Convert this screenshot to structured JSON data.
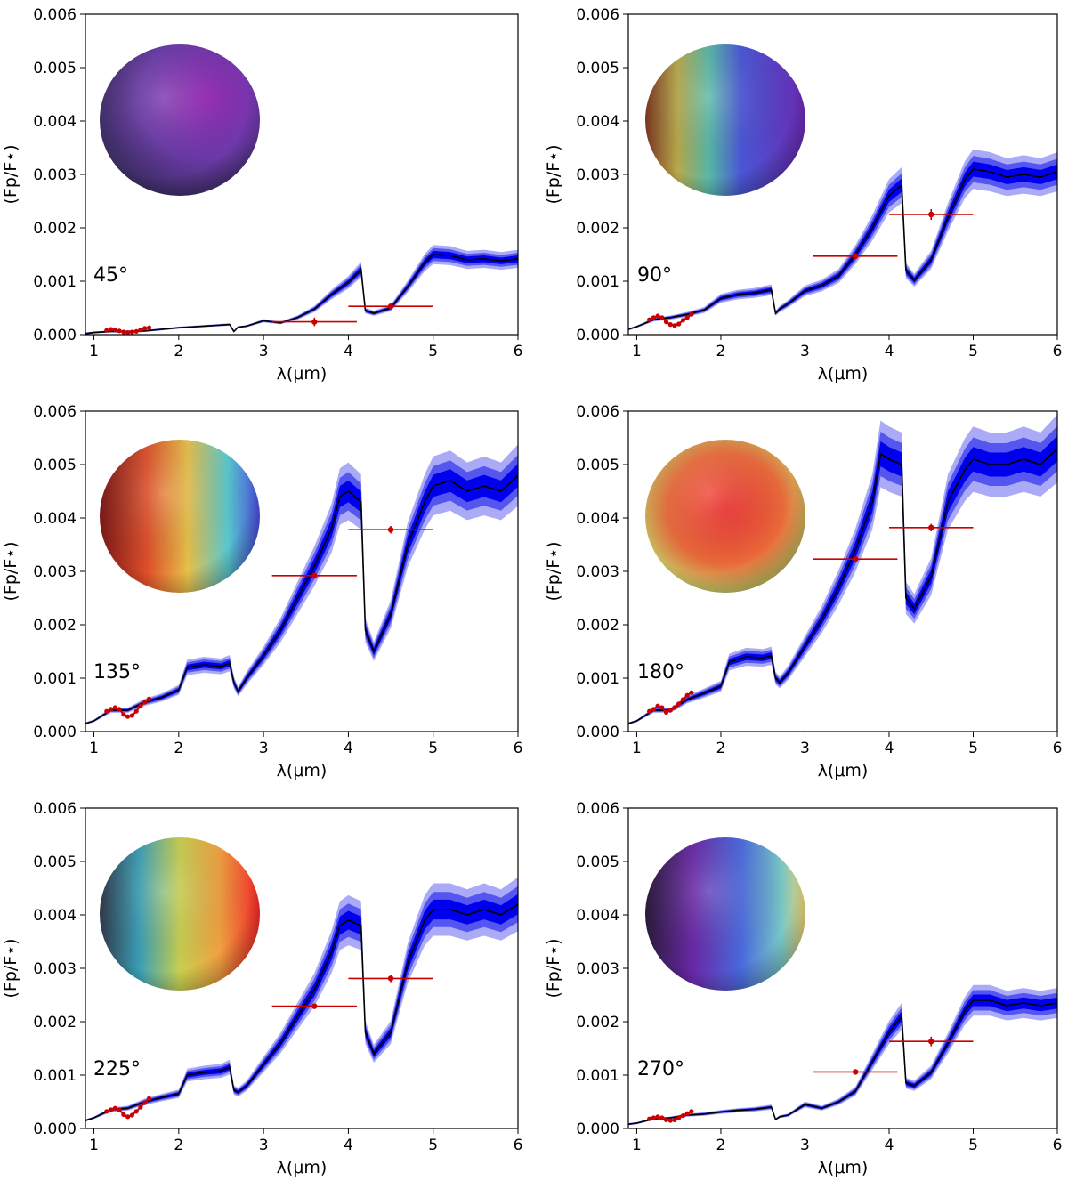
{
  "chart_data": [
    {
      "type": "line",
      "phase_label": "45°",
      "xlabel": "λ(μm)",
      "ylabel": "(Fp/F⋆)",
      "xlim": [
        0.9,
        6
      ],
      "ylim": [
        0,
        0.006
      ],
      "xticks": [
        "1",
        "2",
        "3",
        "4",
        "5",
        "6"
      ],
      "yticks": [
        "0.000",
        "0.001",
        "0.002",
        "0.003",
        "0.004",
        "0.005",
        "0.006"
      ],
      "model_spectrum": {
        "x": [
          0.9,
          1.0,
          1.2,
          1.4,
          1.6,
          1.8,
          2.0,
          2.2,
          2.4,
          2.6,
          2.65,
          2.7,
          2.8,
          3.0,
          3.2,
          3.4,
          3.6,
          3.8,
          4.0,
          4.15,
          4.2,
          4.3,
          4.5,
          4.7,
          4.9,
          5.0,
          5.2,
          5.4,
          5.6,
          5.8,
          6.0
        ],
        "y": [
          2e-05,
          4e-05,
          6e-05,
          6e-05,
          7e-05,
          0.0001,
          0.00013,
          0.00015,
          0.00017,
          0.00019,
          6e-05,
          0.00014,
          0.00016,
          0.00026,
          0.00022,
          0.00032,
          0.00048,
          0.00075,
          0.00098,
          0.00122,
          0.00045,
          0.0004,
          0.0005,
          0.0009,
          0.00135,
          0.0015,
          0.00148,
          0.0014,
          0.00142,
          0.00138,
          0.00142
        ]
      },
      "hst_points": {
        "x": [
          1.15,
          1.2,
          1.25,
          1.3,
          1.35,
          1.4,
          1.45,
          1.5,
          1.55,
          1.6,
          1.65
        ],
        "y": [
          8e-05,
          0.0001,
          9e-05,
          7e-05,
          5e-05,
          4e-05,
          5e-05,
          6e-05,
          9e-05,
          0.00012,
          0.00013
        ]
      },
      "spitzer_points": [
        {
          "x": 3.6,
          "y": 0.00024,
          "xerr": 0.5,
          "yerr": 8e-05
        },
        {
          "x": 4.5,
          "y": 0.00053,
          "xerr": 0.5,
          "yerr": 6e-05
        }
      ]
    },
    {
      "type": "line",
      "phase_label": "90°",
      "xlabel": "λ(μm)",
      "ylabel": "(Fp/F⋆)",
      "xlim": [
        0.9,
        6
      ],
      "ylim": [
        0,
        0.006
      ],
      "xticks": [
        "1",
        "2",
        "3",
        "4",
        "5",
        "6"
      ],
      "yticks": [
        "0.000",
        "0.001",
        "0.002",
        "0.003",
        "0.004",
        "0.005",
        "0.006"
      ],
      "model_spectrum": {
        "x": [
          0.9,
          1.0,
          1.2,
          1.4,
          1.6,
          1.8,
          2.0,
          2.2,
          2.4,
          2.6,
          2.65,
          2.7,
          2.8,
          3.0,
          3.2,
          3.4,
          3.6,
          3.8,
          4.0,
          4.15,
          4.2,
          4.3,
          4.5,
          4.7,
          4.9,
          5.0,
          5.2,
          5.4,
          5.6,
          5.8,
          6.0
        ],
        "y": [
          0.0001,
          0.00015,
          0.00028,
          0.00032,
          0.00038,
          0.00046,
          0.00068,
          0.00075,
          0.00078,
          0.00084,
          0.0004,
          0.00048,
          0.00058,
          0.00082,
          0.00092,
          0.0011,
          0.0015,
          0.002,
          0.0026,
          0.0028,
          0.0012,
          0.00102,
          0.0014,
          0.0022,
          0.0029,
          0.0031,
          0.00305,
          0.00295,
          0.003,
          0.00295,
          0.00305
        ]
      },
      "hst_points": {
        "x": [
          1.15,
          1.2,
          1.25,
          1.3,
          1.35,
          1.4,
          1.45,
          1.5,
          1.55,
          1.6,
          1.65
        ],
        "y": [
          0.00028,
          0.00032,
          0.00035,
          0.00032,
          0.00024,
          0.00019,
          0.00017,
          0.0002,
          0.00027,
          0.00032,
          0.00038
        ]
      },
      "spitzer_points": [
        {
          "x": 3.6,
          "y": 0.00147,
          "xerr": 0.5,
          "yerr": 5e-05
        },
        {
          "x": 4.5,
          "y": 0.00225,
          "xerr": 0.5,
          "yerr": 0.0001
        }
      ]
    },
    {
      "type": "line",
      "phase_label": "135°",
      "xlabel": "λ(μm)",
      "ylabel": "(Fp/F⋆)",
      "xlim": [
        0.9,
        6
      ],
      "ylim": [
        0,
        0.006
      ],
      "xticks": [
        "1",
        "2",
        "3",
        "4",
        "5",
        "6"
      ],
      "yticks": [
        "0.000",
        "0.001",
        "0.002",
        "0.003",
        "0.004",
        "0.005",
        "0.006"
      ],
      "model_spectrum": {
        "x": [
          0.9,
          1.0,
          1.2,
          1.4,
          1.6,
          1.8,
          2.0,
          2.1,
          2.3,
          2.5,
          2.6,
          2.65,
          2.7,
          2.8,
          3.0,
          3.2,
          3.4,
          3.6,
          3.8,
          3.9,
          4.0,
          4.15,
          4.2,
          4.3,
          4.5,
          4.7,
          4.9,
          5.0,
          5.2,
          5.4,
          5.6,
          5.8,
          6.0
        ],
        "y": [
          0.00015,
          0.0002,
          0.0004,
          0.0004,
          0.00055,
          0.00064,
          0.00078,
          0.0012,
          0.00125,
          0.00122,
          0.00128,
          0.00092,
          0.00075,
          0.001,
          0.00142,
          0.0019,
          0.0025,
          0.0031,
          0.0038,
          0.0044,
          0.0045,
          0.0043,
          0.0019,
          0.0015,
          0.0022,
          0.0035,
          0.0043,
          0.0046,
          0.0047,
          0.0045,
          0.0046,
          0.0045,
          0.0048
        ]
      },
      "hst_points": {
        "x": [
          1.15,
          1.2,
          1.25,
          1.3,
          1.35,
          1.4,
          1.45,
          1.5,
          1.55,
          1.6,
          1.65
        ],
        "y": [
          0.00038,
          0.00042,
          0.00045,
          0.00042,
          0.00032,
          0.00028,
          0.0003,
          0.00038,
          0.00048,
          0.00055,
          0.00061
        ]
      },
      "spitzer_points": [
        {
          "x": 3.6,
          "y": 0.00292,
          "xerr": 0.5,
          "yerr": 6e-05
        },
        {
          "x": 4.5,
          "y": 0.00378,
          "xerr": 0.5,
          "yerr": 7e-05
        }
      ]
    },
    {
      "type": "line",
      "phase_label": "180°",
      "xlabel": "λ(μm)",
      "ylabel": "(Fp/F⋆)",
      "xlim": [
        0.9,
        6
      ],
      "ylim": [
        0,
        0.006
      ],
      "xticks": [
        "1",
        "2",
        "3",
        "4",
        "5",
        "6"
      ],
      "yticks": [
        "0.000",
        "0.001",
        "0.002",
        "0.003",
        "0.004",
        "0.005",
        "0.006"
      ],
      "model_spectrum": {
        "x": [
          0.9,
          1.0,
          1.2,
          1.4,
          1.6,
          1.8,
          2.0,
          2.1,
          2.3,
          2.5,
          2.6,
          2.65,
          2.7,
          2.8,
          3.0,
          3.2,
          3.4,
          3.6,
          3.8,
          3.9,
          4.0,
          4.15,
          4.2,
          4.3,
          4.5,
          4.7,
          4.9,
          5.0,
          5.2,
          5.4,
          5.6,
          5.8,
          6.0
        ],
        "y": [
          0.00015,
          0.0002,
          0.0004,
          0.0004,
          0.0006,
          0.00072,
          0.00085,
          0.0013,
          0.0014,
          0.00138,
          0.00142,
          0.001,
          0.00092,
          0.0011,
          0.0016,
          0.0021,
          0.0027,
          0.0034,
          0.0043,
          0.0052,
          0.0051,
          0.005,
          0.0025,
          0.0023,
          0.0029,
          0.0043,
          0.0049,
          0.0051,
          0.005,
          0.005,
          0.0051,
          0.005,
          0.0053
        ]
      },
      "hst_points": {
        "x": [
          1.15,
          1.2,
          1.25,
          1.3,
          1.35,
          1.4,
          1.45,
          1.5,
          1.55,
          1.6,
          1.65
        ],
        "y": [
          0.00038,
          0.00042,
          0.00048,
          0.00045,
          0.00036,
          0.0004,
          0.00045,
          0.00052,
          0.0006,
          0.00068,
          0.00073
        ]
      },
      "spitzer_points": [
        {
          "x": 3.6,
          "y": 0.00323,
          "xerr": 0.5,
          "yerr": 5e-05
        },
        {
          "x": 4.5,
          "y": 0.00382,
          "xerr": 0.5,
          "yerr": 7e-05
        }
      ]
    },
    {
      "type": "line",
      "phase_label": "225°",
      "xlabel": "λ(μm)",
      "ylabel": "(Fp/F⋆)",
      "xlim": [
        0.9,
        6
      ],
      "ylim": [
        0,
        0.006
      ],
      "xticks": [
        "1",
        "2",
        "3",
        "4",
        "5",
        "6"
      ],
      "yticks": [
        "0.000",
        "0.001",
        "0.002",
        "0.003",
        "0.004",
        "0.005",
        "0.006"
      ],
      "model_spectrum": {
        "x": [
          0.9,
          1.0,
          1.2,
          1.4,
          1.6,
          1.8,
          2.0,
          2.1,
          2.3,
          2.5,
          2.6,
          2.65,
          2.7,
          2.8,
          3.0,
          3.2,
          3.4,
          3.6,
          3.8,
          3.9,
          4.0,
          4.15,
          4.2,
          4.3,
          4.5,
          4.7,
          4.9,
          5.0,
          5.2,
          5.4,
          5.6,
          5.8,
          6.0
        ],
        "y": [
          0.00015,
          0.0002,
          0.00035,
          0.00038,
          0.0005,
          0.00058,
          0.00065,
          0.001,
          0.00105,
          0.00108,
          0.00115,
          0.00072,
          0.00068,
          0.0008,
          0.0012,
          0.0016,
          0.0021,
          0.0026,
          0.0033,
          0.0038,
          0.0039,
          0.0038,
          0.0018,
          0.0014,
          0.0018,
          0.0031,
          0.0039,
          0.0041,
          0.0041,
          0.004,
          0.0041,
          0.004,
          0.0042
        ]
      },
      "hst_points": {
        "x": [
          1.15,
          1.2,
          1.25,
          1.3,
          1.35,
          1.4,
          1.45,
          1.5,
          1.55,
          1.6,
          1.65
        ],
        "y": [
          0.00032,
          0.00035,
          0.00038,
          0.00035,
          0.00026,
          0.00022,
          0.00025,
          0.00032,
          0.0004,
          0.00048,
          0.00056
        ]
      },
      "spitzer_points": [
        {
          "x": 3.6,
          "y": 0.00229,
          "xerr": 0.5,
          "yerr": 5e-05
        },
        {
          "x": 4.5,
          "y": 0.00281,
          "xerr": 0.5,
          "yerr": 7e-05
        }
      ]
    },
    {
      "type": "line",
      "phase_label": "270°",
      "xlabel": "λ(μm)",
      "ylabel": "(Fp/F⋆)",
      "xlim": [
        0.9,
        6
      ],
      "ylim": [
        0,
        0.006
      ],
      "xticks": [
        "1",
        "2",
        "3",
        "4",
        "5",
        "6"
      ],
      "yticks": [
        "0.000",
        "0.001",
        "0.002",
        "0.003",
        "0.004",
        "0.005",
        "0.006"
      ],
      "model_spectrum": {
        "x": [
          0.9,
          1.0,
          1.2,
          1.4,
          1.6,
          1.8,
          2.0,
          2.2,
          2.4,
          2.6,
          2.65,
          2.7,
          2.8,
          3.0,
          3.2,
          3.4,
          3.6,
          3.8,
          4.0,
          4.15,
          4.2,
          4.3,
          4.5,
          4.7,
          4.9,
          5.0,
          5.2,
          5.4,
          5.6,
          5.8,
          6.0
        ],
        "y": [
          8e-05,
          0.0001,
          0.00018,
          0.0002,
          0.00025,
          0.00027,
          0.00031,
          0.00034,
          0.00036,
          0.0004,
          0.00017,
          0.00022,
          0.00025,
          0.00045,
          0.00038,
          0.0005,
          0.0007,
          0.00125,
          0.0018,
          0.0021,
          0.00085,
          0.0008,
          0.00105,
          0.0016,
          0.0022,
          0.0024,
          0.0024,
          0.0023,
          0.00235,
          0.0023,
          0.00235
        ]
      },
      "hst_points": {
        "x": [
          1.15,
          1.2,
          1.25,
          1.3,
          1.35,
          1.4,
          1.45,
          1.5,
          1.55,
          1.6,
          1.65
        ],
        "y": [
          0.00018,
          0.0002,
          0.00022,
          0.0002,
          0.00016,
          0.00015,
          0.00016,
          0.0002,
          0.00024,
          0.00028,
          0.00032
        ]
      },
      "spitzer_points": [
        {
          "x": 3.6,
          "y": 0.00106,
          "xerr": 0.5,
          "yerr": 5e-05
        },
        {
          "x": 4.5,
          "y": 0.00163,
          "xerr": 0.5,
          "yerr": 9e-05
        }
      ]
    }
  ],
  "colors": {
    "model_line": "#000000",
    "band_1sigma": "#0000ee",
    "band_2sigma": "#5555f0",
    "band_3sigma": "#aaaaf7",
    "data_points": "#cc0000",
    "axis": "#000000"
  }
}
